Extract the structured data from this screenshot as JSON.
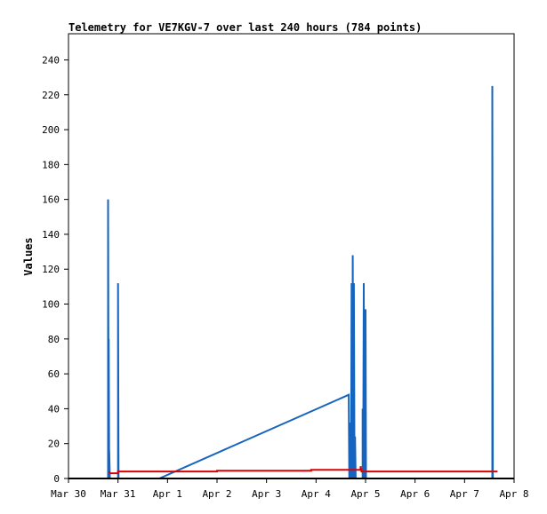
{
  "chart_data": {
    "type": "line",
    "title": "Telemetry for VE7KGV-7 over last 240 hours (784 points)",
    "xlabel": "",
    "ylabel": "Values",
    "x_ticks": [
      "Mar 30",
      "Mar 31",
      "Apr 1",
      "Apr 2",
      "Apr 3",
      "Apr 4",
      "Apr 5",
      "Apr 6",
      "Apr 7",
      "Apr 8"
    ],
    "y_ticks": [
      0,
      20,
      40,
      60,
      80,
      100,
      120,
      140,
      160,
      180,
      200,
      220,
      240
    ],
    "xlim": [
      "2021-03-30T00:00",
      "2021-04-08T00:00"
    ],
    "ylim": [
      0,
      240
    ],
    "grid": false,
    "colors": {
      "blue": "#1565c0",
      "red": "#dd0000",
      "black": "#000000"
    },
    "series": [
      {
        "color": "#1565c0",
        "points": [
          [
            "2021-03-30T19:12",
            0
          ],
          [
            "2021-03-30T19:12",
            160
          ],
          [
            "2021-03-30T19:29",
            0
          ],
          [
            "2021-03-30T19:29",
            80
          ],
          [
            "2021-03-30T19:46",
            0
          ],
          [
            "2021-03-30T19:46",
            16
          ],
          [
            "2021-03-30T20:02",
            0
          ],
          [
            "2021-03-31T00:00",
            0
          ],
          [
            "2021-03-31T00:00",
            112
          ],
          [
            "2021-03-31T00:17",
            0
          ],
          [
            "2021-03-31T20:00",
            0
          ],
          [
            "2021-04-04T15:50",
            48
          ],
          [
            "2021-04-04T16:07",
            0
          ],
          [
            "2021-04-04T16:07",
            32
          ],
          [
            "2021-04-04T16:24",
            0
          ],
          [
            "2021-04-04T16:41",
            32
          ],
          [
            "2021-04-04T16:58",
            0
          ],
          [
            "2021-04-04T17:14",
            112
          ],
          [
            "2021-04-04T17:31",
            0
          ],
          [
            "2021-04-04T17:48",
            128
          ],
          [
            "2021-04-04T18:05",
            0
          ],
          [
            "2021-04-04T18:22",
            112
          ],
          [
            "2021-04-04T18:38",
            0
          ],
          [
            "2021-04-04T18:55",
            24
          ],
          [
            "2021-04-04T19:12",
            0
          ],
          [
            "2021-04-04T22:34",
            0
          ],
          [
            "2021-04-04T22:34",
            40
          ],
          [
            "2021-04-04T22:50",
            0
          ],
          [
            "2021-04-04T23:07",
            112
          ],
          [
            "2021-04-04T23:24",
            0
          ],
          [
            "2021-04-05T00:00",
            0
          ],
          [
            "2021-04-05T00:00",
            97
          ],
          [
            "2021-04-05T00:14",
            0
          ],
          [
            "2021-04-07T13:26",
            0
          ],
          [
            "2021-04-07T13:26",
            225
          ],
          [
            "2021-04-07T13:43",
            0
          ]
        ]
      },
      {
        "color": "#dd0000",
        "points": [
          [
            "2021-03-30T19:46",
            4
          ],
          [
            "2021-03-30T20:02",
            3
          ],
          [
            "2021-03-31T00:00",
            3
          ],
          [
            "2021-03-31T00:00",
            4
          ],
          [
            "2021-04-02T00:00",
            4
          ],
          [
            "2021-04-02T00:00",
            4.5
          ],
          [
            "2021-04-03T21:36",
            4.5
          ],
          [
            "2021-04-03T21:36",
            5
          ],
          [
            "2021-04-04T19:12",
            5
          ],
          [
            "2021-04-04T21:36",
            5
          ],
          [
            "2021-04-04T21:36",
            7
          ],
          [
            "2021-04-04T22:00",
            4
          ],
          [
            "2021-04-07T16:00",
            4
          ]
        ]
      },
      {
        "color": "#000000",
        "points": [
          [
            "2021-03-30T00:00",
            0
          ],
          [
            "2021-04-08T00:00",
            0
          ]
        ]
      }
    ]
  }
}
